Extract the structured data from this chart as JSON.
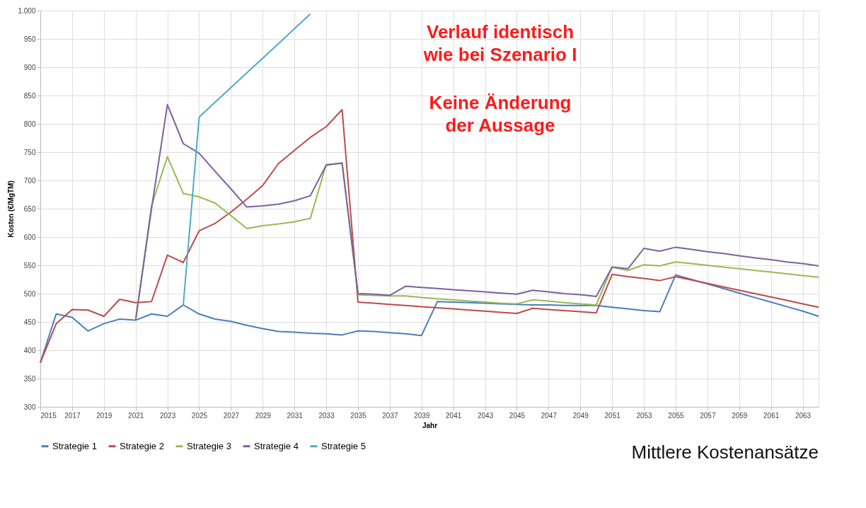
{
  "chart_data": {
    "type": "line",
    "xlabel": "Jahr",
    "ylabel": "Kosten (€/MgTM)",
    "x": [
      2015,
      2016,
      2017,
      2018,
      2019,
      2020,
      2021,
      2022,
      2023,
      2024,
      2025,
      2026,
      2027,
      2028,
      2029,
      2030,
      2031,
      2032,
      2033,
      2034,
      2035,
      2036,
      2037,
      2038,
      2039,
      2040,
      2041,
      2042,
      2043,
      2044,
      2045,
      2046,
      2047,
      2048,
      2049,
      2050,
      2051,
      2052,
      2053,
      2054,
      2055,
      2056,
      2057,
      2058,
      2059,
      2060,
      2061,
      2062,
      2063,
      2064
    ],
    "series": [
      {
        "name": "Strategie 1",
        "color": "#4a7ebb",
        "values": [
          378,
          464,
          458,
          434,
          447,
          455,
          453,
          464,
          460,
          480,
          464,
          455,
          451,
          444,
          438,
          433,
          432,
          430,
          429,
          427,
          434,
          433,
          431,
          429,
          426,
          486,
          485,
          484,
          483,
          482,
          481,
          480,
          480,
          479,
          479,
          479,
          476,
          473,
          470,
          468,
          533,
          525,
          517,
          509,
          501,
          493,
          485,
          477,
          469,
          460
        ]
      },
      {
        "name": "Strategie 2",
        "color": "#be4b48",
        "values": [
          378,
          447,
          472,
          471,
          460,
          490,
          484,
          486,
          568,
          555,
          611,
          624,
          644,
          667,
          691,
          730,
          753,
          776,
          795,
          825,
          485,
          483,
          481,
          479,
          477,
          475,
          473,
          471,
          469,
          467,
          465,
          474,
          472,
          470,
          468,
          466,
          534,
          530,
          527,
          523,
          530,
          524,
          518,
          512,
          506,
          500,
          494,
          488,
          482,
          476
        ]
      },
      {
        "name": "Strategie 3",
        "color": "#98b954",
        "values": [
          null,
          null,
          null,
          null,
          null,
          null,
          453,
          655,
          742,
          677,
          671,
          660,
          638,
          615,
          620,
          623,
          627,
          633,
          728,
          730,
          498,
          497,
          496,
          496,
          493,
          491,
          489,
          487,
          485,
          483,
          482,
          489,
          487,
          484,
          482,
          480,
          547,
          541,
          551,
          549,
          556,
          553,
          550,
          547,
          544,
          541,
          538,
          535,
          532,
          529
        ]
      },
      {
        "name": "Strategie 4",
        "color": "#7d60a0",
        "values": [
          null,
          null,
          null,
          null,
          null,
          null,
          453,
          650,
          834,
          765,
          748,
          716,
          685,
          653,
          655,
          658,
          664,
          673,
          727,
          731,
          500,
          499,
          497,
          513,
          511,
          509,
          507,
          505,
          503,
          501,
          499,
          506,
          503,
          500,
          498,
          495,
          547,
          544,
          580,
          575,
          582,
          578,
          574,
          571,
          567,
          563,
          560,
          556,
          553,
          549
        ]
      },
      {
        "name": "Strategie 5",
        "color": "#4bacc6",
        "values": [
          null,
          null,
          null,
          null,
          null,
          null,
          null,
          null,
          null,
          480,
          812,
          838,
          864,
          890,
          916,
          942,
          968,
          994,
          null,
          null,
          null,
          null,
          null,
          null,
          null,
          null,
          null,
          null,
          null,
          null,
          null,
          null,
          null,
          null,
          null,
          null,
          null,
          null,
          null,
          null,
          null,
          null,
          null,
          null,
          null,
          null,
          null,
          null,
          null,
          null
        ]
      }
    ],
    "xlim": [
      2015,
      2064
    ],
    "xticks": [
      2015,
      2017,
      2019,
      2021,
      2023,
      2025,
      2027,
      2029,
      2031,
      2033,
      2035,
      2037,
      2039,
      2041,
      2043,
      2045,
      2047,
      2049,
      2051,
      2053,
      2055,
      2057,
      2059,
      2061,
      2063
    ],
    "ylim": [
      300,
      1000
    ],
    "yticks": [
      300,
      350,
      400,
      450,
      500,
      550,
      600,
      650,
      700,
      750,
      800,
      850,
      900,
      950,
      {
        "value": 1000,
        "label": "1.000"
      }
    ],
    "grid": true,
    "legend": "bottom",
    "marker": "none",
    "line_style": "solid",
    "annotations": [
      "Verlauf identisch wie bei Szenario I",
      "Keine Änderung der Aussage",
      "Mittlere Kostenansätze"
    ]
  }
}
